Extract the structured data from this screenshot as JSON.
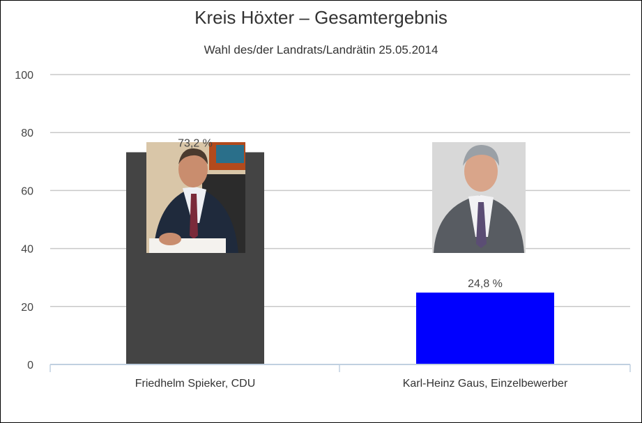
{
  "chart_data": {
    "type": "bar",
    "title": "Kreis Höxter – Gesamtergebnis",
    "subtitle": "Wahl des/der Landrats/Landrätin 25.05.2014",
    "categories": [
      "Friedhelm Spieker, CDU",
      "Karl-Heinz Gaus, Einzelbewerber"
    ],
    "values": [
      73.2,
      24.8
    ],
    "data_labels": [
      "73,2 %",
      "24,8 %"
    ],
    "colors": [
      "#444444",
      "#0000ff"
    ],
    "ylim": [
      0,
      100
    ],
    "yticks": [
      "0",
      "20",
      "40",
      "60",
      "80",
      "100"
    ],
    "grid": true,
    "legend": "none",
    "portraits": [
      "portrait-photo",
      "portrait-photo"
    ]
  }
}
